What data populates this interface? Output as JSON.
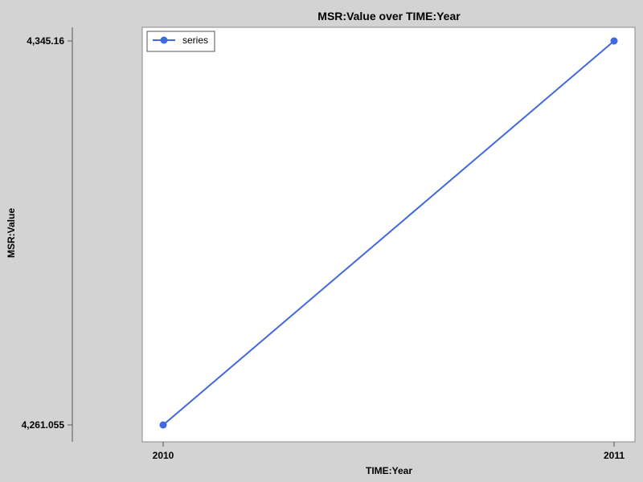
{
  "chart_data": {
    "type": "line",
    "title": "MSR:Value over TIME:Year",
    "xlabel": "TIME:Year",
    "ylabel": "MSR:Value",
    "x": [
      2010,
      2011
    ],
    "x_tick_labels": [
      "2010",
      "2011"
    ],
    "y_tick_labels": [
      "4,261.055",
      "4,345.16"
    ],
    "y_ticks": [
      4261.055,
      4345.16
    ],
    "ylim": [
      4261.055,
      4345.16
    ],
    "series": [
      {
        "name": "series",
        "values": [
          4261.055,
          4345.16
        ],
        "color": "#4169e1"
      }
    ],
    "legend_placement": "top-left",
    "grid": false
  },
  "colors": {
    "background": "#d3d3d3",
    "plot_background": "#ffffff",
    "line": "#4169e1"
  }
}
